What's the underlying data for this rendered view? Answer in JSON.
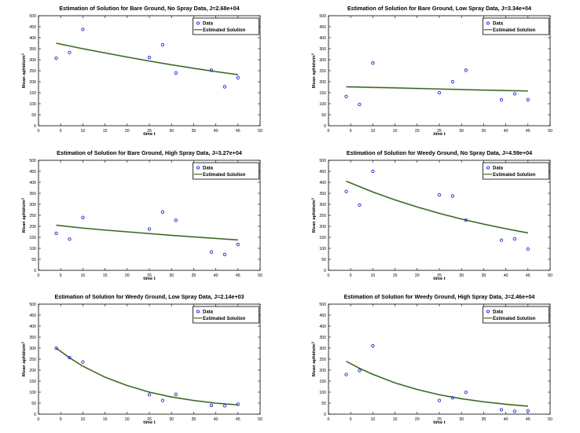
{
  "figure": {
    "background": "#ffffff",
    "grid": {
      "rows": 3,
      "cols": 2
    }
  },
  "colors": {
    "data_marker": "#2323dd",
    "solution_line": "#2c5b17",
    "solution_line_halo": "#a6bb90",
    "axis": "#000000",
    "plot_background": "#ffffff"
  },
  "axis": {
    "xlabel": "time t",
    "ylabel": "Mean aphids/m",
    "ylabel_sup": "3",
    "xlim": [
      0,
      50
    ],
    "ylim": [
      0,
      500
    ],
    "xticks": [
      0,
      5,
      10,
      15,
      20,
      25,
      30,
      35,
      40,
      45,
      50
    ],
    "yticks": [
      0,
      50,
      100,
      150,
      200,
      250,
      300,
      350,
      400,
      450,
      500
    ]
  },
  "legend": {
    "position": "top-right",
    "items": [
      {
        "label": "Data",
        "type": "marker"
      },
      {
        "label": "Estimated Solution",
        "type": "line"
      }
    ]
  },
  "chart_data": [
    {
      "type": "scatter",
      "title": "Estimation of Solution for Bare Ground, No Spray Data, J=2.68e+04",
      "xlabel": "time t",
      "ylabel": "Mean aphids/m^3",
      "xlim": [
        0,
        50
      ],
      "ylim": [
        0,
        500
      ],
      "legend_entries": [
        "Data",
        "Estimated Solution"
      ],
      "data_points": [
        [
          4,
          307
        ],
        [
          7,
          333
        ],
        [
          10,
          438
        ],
        [
          25,
          310
        ],
        [
          28,
          368
        ],
        [
          31,
          240
        ],
        [
          39,
          252
        ],
        [
          42,
          177
        ],
        [
          45,
          218
        ]
      ],
      "solution_curve": [
        [
          4,
          375
        ],
        [
          10,
          350
        ],
        [
          15,
          331
        ],
        [
          20,
          312
        ],
        [
          25,
          294
        ],
        [
          30,
          277
        ],
        [
          35,
          261
        ],
        [
          40,
          246
        ],
        [
          45,
          232
        ]
      ]
    },
    {
      "type": "scatter",
      "title": "Estimation of Solution for Bare Ground, Low Spray Data, J=3.34e+04",
      "xlabel": "time t",
      "ylabel": "Mean aphids/m^3",
      "xlim": [
        0,
        50
      ],
      "ylim": [
        0,
        500
      ],
      "legend_entries": [
        "Data",
        "Estimated Solution"
      ],
      "data_points": [
        [
          4,
          133
        ],
        [
          7,
          97
        ],
        [
          10,
          285
        ],
        [
          25,
          150
        ],
        [
          28,
          200
        ],
        [
          31,
          252
        ],
        [
          39,
          118
        ],
        [
          42,
          145
        ],
        [
          45,
          118
        ]
      ],
      "solution_curve": [
        [
          4,
          177
        ],
        [
          15,
          172
        ],
        [
          25,
          167
        ],
        [
          35,
          162
        ],
        [
          45,
          158
        ]
      ]
    },
    {
      "type": "scatter",
      "title": "Estimation of Solution for Bare Ground, High Spray Data, J=3.27e+04",
      "xlabel": "time t",
      "ylabel": "Mean aphids/m^3",
      "xlim": [
        0,
        50
      ],
      "ylim": [
        0,
        500
      ],
      "legend_entries": [
        "Data",
        "Estimated Solution"
      ],
      "data_points": [
        [
          4,
          168
        ],
        [
          7,
          142
        ],
        [
          10,
          240
        ],
        [
          25,
          188
        ],
        [
          28,
          265
        ],
        [
          31,
          227
        ],
        [
          39,
          83
        ],
        [
          42,
          72
        ],
        [
          45,
          118
        ]
      ],
      "solution_curve": [
        [
          4,
          205
        ],
        [
          10,
          192
        ],
        [
          15,
          183
        ],
        [
          20,
          175
        ],
        [
          25,
          167
        ],
        [
          30,
          159
        ],
        [
          35,
          152
        ],
        [
          40,
          145
        ],
        [
          45,
          138
        ]
      ]
    },
    {
      "type": "scatter",
      "title": "Estimation of Solution for Weedy Ground, No Spray Data, J=4.59e+04",
      "xlabel": "time t",
      "ylabel": "Mean aphids/m^3",
      "xlim": [
        0,
        50
      ],
      "ylim": [
        0,
        500
      ],
      "legend_entries": [
        "Data",
        "Estimated Solution"
      ],
      "data_points": [
        [
          4,
          358
        ],
        [
          7,
          297
        ],
        [
          10,
          450
        ],
        [
          25,
          343
        ],
        [
          28,
          338
        ],
        [
          31,
          228
        ],
        [
          39,
          137
        ],
        [
          42,
          143
        ],
        [
          45,
          97
        ]
      ],
      "solution_curve": [
        [
          4,
          405
        ],
        [
          10,
          356
        ],
        [
          15,
          320
        ],
        [
          20,
          288
        ],
        [
          25,
          259
        ],
        [
          30,
          233
        ],
        [
          35,
          210
        ],
        [
          40,
          189
        ],
        [
          45,
          170
        ]
      ]
    },
    {
      "type": "scatter",
      "title": "Estimation of Solution for Weedy Ground, Low Spray Data, J=2.14e+03",
      "xlabel": "time t",
      "ylabel": "Mean aphids/m^3",
      "xlim": [
        0,
        50
      ],
      "ylim": [
        0,
        500
      ],
      "legend_entries": [
        "Data",
        "Estimated Solution"
      ],
      "data_points": [
        [
          4,
          300
        ],
        [
          7,
          257
        ],
        [
          10,
          237
        ],
        [
          25,
          88
        ],
        [
          28,
          62
        ],
        [
          31,
          90
        ],
        [
          39,
          40
        ],
        [
          42,
          38
        ],
        [
          45,
          45
        ]
      ],
      "solution_curve": [
        [
          4,
          300
        ],
        [
          7,
          256
        ],
        [
          10,
          218
        ],
        [
          15,
          168
        ],
        [
          20,
          130
        ],
        [
          25,
          100
        ],
        [
          30,
          78
        ],
        [
          35,
          62
        ],
        [
          40,
          50
        ],
        [
          45,
          42
        ]
      ]
    },
    {
      "type": "scatter",
      "title": "Estimation of Solution for Weedy Ground, High Spray Data, J=2.46e+04",
      "xlabel": "time t",
      "ylabel": "Mean aphids/m^3",
      "xlim": [
        0,
        50
      ],
      "ylim": [
        0,
        500
      ],
      "legend_entries": [
        "Data",
        "Estimated Solution"
      ],
      "data_points": [
        [
          4,
          180
        ],
        [
          7,
          198
        ],
        [
          10,
          310
        ],
        [
          25,
          62
        ],
        [
          28,
          74
        ],
        [
          31,
          99
        ],
        [
          39,
          20
        ],
        [
          42,
          13
        ],
        [
          45,
          15
        ]
      ],
      "solution_curve": [
        [
          4,
          240
        ],
        [
          7,
          208
        ],
        [
          10,
          181
        ],
        [
          15,
          142
        ],
        [
          20,
          112
        ],
        [
          25,
          88
        ],
        [
          30,
          70
        ],
        [
          35,
          56
        ],
        [
          40,
          45
        ],
        [
          45,
          36
        ]
      ]
    }
  ]
}
